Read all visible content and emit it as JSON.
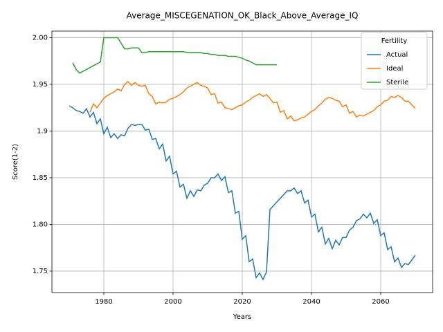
{
  "chart_data": {
    "type": "line",
    "title": "Average_MISCEGENATION_OK_Black_Above_Average_IQ",
    "x_label": "Years",
    "y_label": "Score(1-2)",
    "x": [
      1970,
      1971,
      1972,
      1973,
      1974,
      1975,
      1976,
      1977,
      1978,
      1979,
      1980,
      1981,
      1982,
      1983,
      1984,
      1985,
      1986,
      1987,
      1988,
      1989,
      1990,
      1991,
      1992,
      1993,
      1994,
      1995,
      1996,
      1997,
      1998,
      1999,
      2000,
      2001,
      2002,
      2003,
      2004,
      2005,
      2006,
      2007,
      2008,
      2009,
      2010,
      2011,
      2012,
      2013,
      2014,
      2015,
      2016,
      2017,
      2018,
      2019,
      2020,
      2021,
      2022,
      2023,
      2024,
      2025,
      2026,
      2027,
      2028,
      2029,
      2030,
      2031,
      2032,
      2033,
      2034,
      2035,
      2036,
      2037,
      2038,
      2039,
      2040,
      2041,
      2042,
      2043,
      2044,
      2045,
      2046,
      2047,
      2048,
      2049,
      2050,
      2051,
      2052,
      2053,
      2054,
      2055,
      2056,
      2057,
      2058,
      2059,
      2060,
      2061,
      2062,
      2063,
      2064,
      2065,
      2066,
      2067,
      2068,
      2069,
      2070
    ],
    "series": [
      {
        "name": "Actual",
        "color": "#1f77b4",
        "values": [
          1.927,
          1.925,
          1.922,
          1.921,
          1.919,
          1.924,
          1.915,
          1.92,
          1.908,
          1.913,
          1.897,
          1.904,
          1.893,
          1.897,
          1.892,
          1.896,
          1.895,
          1.903,
          1.907,
          1.906,
          1.907,
          1.907,
          1.901,
          1.902,
          1.891,
          1.892,
          1.881,
          1.886,
          1.868,
          1.873,
          1.854,
          1.857,
          1.84,
          1.843,
          1.828,
          1.836,
          1.83,
          1.837,
          1.836,
          1.842,
          1.844,
          1.85,
          1.85,
          1.854,
          1.847,
          1.851,
          1.834,
          1.836,
          1.812,
          1.814,
          1.784,
          1.788,
          1.76,
          1.763,
          1.743,
          1.748,
          1.741,
          1.749,
          1.816,
          1.82,
          1.824,
          1.828,
          1.832,
          1.836,
          1.836,
          1.839,
          1.833,
          1.836,
          1.823,
          1.826,
          1.808,
          1.811,
          1.792,
          1.797,
          1.779,
          1.785,
          1.774,
          1.783,
          1.778,
          1.786,
          1.786,
          1.794,
          1.797,
          1.804,
          1.806,
          1.811,
          1.807,
          1.812,
          1.801,
          1.805,
          1.788,
          1.791,
          1.773,
          1.776,
          1.76,
          1.764,
          1.754,
          1.758,
          1.757,
          1.762,
          1.767
        ]
      },
      {
        "name": "Ideal",
        "color": "#ff7f0e",
        "values": [
          null,
          null,
          null,
          null,
          null,
          null,
          1.92,
          1.929,
          1.925,
          1.93,
          1.935,
          1.938,
          1.94,
          1.942,
          1.945,
          1.943,
          1.95,
          1.953,
          1.949,
          1.952,
          1.949,
          1.948,
          1.949,
          1.94,
          1.937,
          1.929,
          1.931,
          1.93,
          1.931,
          1.934,
          1.935,
          1.937,
          1.939,
          1.942,
          1.946,
          1.948,
          1.95,
          1.952,
          1.949,
          1.948,
          1.946,
          1.939,
          1.94,
          1.93,
          1.931,
          1.925,
          1.924,
          1.923,
          1.925,
          1.927,
          1.928,
          1.931,
          1.933,
          1.936,
          1.938,
          1.94,
          1.937,
          1.939,
          1.935,
          1.93,
          1.931,
          1.92,
          1.922,
          1.913,
          1.916,
          1.911,
          1.912,
          1.914,
          1.915,
          1.918,
          1.921,
          1.923,
          1.927,
          1.93,
          1.934,
          1.936,
          1.935,
          1.933,
          1.932,
          1.926,
          1.928,
          1.919,
          1.921,
          1.915,
          1.917,
          1.916,
          1.918,
          1.92,
          1.922,
          1.926,
          1.928,
          1.932,
          1.933,
          1.937,
          1.936,
          1.938,
          1.936,
          1.932,
          1.932,
          1.928,
          1.924
        ]
      },
      {
        "name": "Sterile",
        "color": "#2ca02c",
        "values": [
          null,
          1.973,
          1.966,
          1.962,
          1.964,
          1.966,
          1.968,
          1.97,
          1.972,
          1.974,
          2.0,
          2.0,
          2.0,
          2.0,
          2.0,
          1.994,
          1.988,
          1.988,
          1.989,
          1.989,
          1.989,
          1.984,
          1.984,
          1.985,
          1.985,
          1.985,
          1.985,
          1.985,
          1.985,
          1.985,
          1.985,
          1.985,
          1.985,
          1.985,
          1.984,
          1.984,
          1.984,
          1.984,
          1.984,
          1.983,
          1.983,
          1.982,
          1.982,
          1.981,
          1.981,
          1.981,
          1.98,
          1.98,
          1.98,
          1.979,
          1.978,
          1.976,
          1.975,
          1.973,
          1.971,
          1.971,
          1.971,
          1.971,
          1.971,
          1.971,
          1.971,
          null,
          null,
          null,
          null,
          null,
          null,
          null,
          null,
          null,
          null,
          null,
          null,
          null,
          null,
          null,
          null,
          null,
          null,
          null,
          null,
          null,
          null,
          null,
          null,
          null,
          null,
          null,
          null,
          null,
          null,
          null,
          null,
          null,
          null,
          null,
          null,
          null,
          null,
          null,
          null
        ]
      }
    ],
    "xlim": [
      1965,
      2075
    ],
    "xticks": [
      1980,
      2000,
      2020,
      2040,
      2060
    ],
    "ylim": [
      1.727,
      2.007
    ],
    "yticks": [
      1.75,
      {
        "value": 1.8,
        "label": "1.80"
      },
      1.85,
      1.9,
      1.95,
      {
        "value": 2.0,
        "label": "2.00"
      }
    ],
    "grid": true,
    "legend_title": "Fertility",
    "legend_loc": "upper right"
  }
}
